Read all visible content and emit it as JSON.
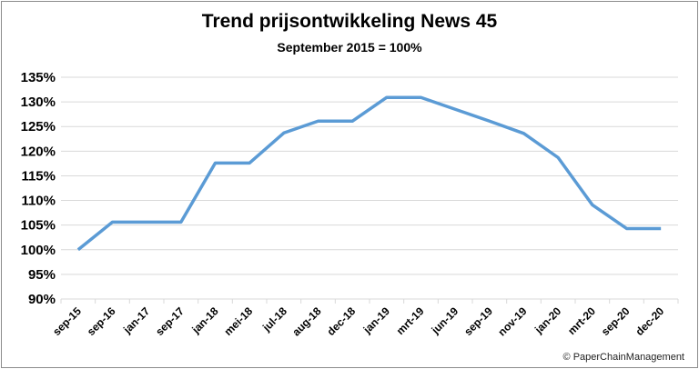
{
  "chart_data": {
    "type": "line",
    "title": "Trend prijsontwikkeling News 45",
    "subtitle": "September 2015 = 100%",
    "categories": [
      "sep-15",
      "sep-16",
      "jan-17",
      "sep-17",
      "jan-18",
      "mei-18",
      "jul-18",
      "aug-18",
      "dec-18",
      "jan-19",
      "mrt-19",
      "jun-19",
      "sep-19",
      "nov-19",
      "jan-20",
      "mrt-20",
      "sep-20",
      "dec-20"
    ],
    "series": [
      {
        "values": [
          100,
          105.6,
          105.6,
          105.6,
          117.6,
          117.6,
          123.7,
          126.1,
          126.1,
          130.9,
          130.9,
          128.5,
          126.1,
          123.6,
          118.7,
          109.1,
          104.3,
          104.3
        ],
        "color": "#5b9bd5"
      }
    ],
    "ylim": [
      90,
      135
    ],
    "yticks": [
      90,
      95,
      100,
      105,
      110,
      115,
      120,
      125,
      130,
      135
    ],
    "ytick_format": "percent",
    "grid": "horizontal",
    "legend": "none",
    "annotation": "© PaperChainManagement"
  }
}
